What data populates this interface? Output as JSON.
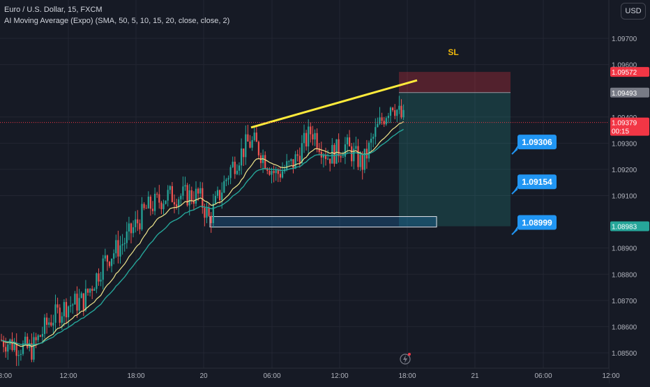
{
  "header": {
    "symbol_line": "Euro / U.S. Dollar, 15, FXCM",
    "indicator_line": "AI Moving Average (Expo) (SMA, 50, 5, 10, 15, 20, close, close, 2)",
    "currency_button": "USD"
  },
  "chart_data": {
    "type": "candlestick",
    "x_ticks": [
      "12:00",
      "18:00",
      "20",
      "06:00",
      "12:00",
      "18:00",
      "21",
      "06:00",
      "12:00"
    ],
    "x_tick_first_partial": "18:00",
    "y_ticks": [
      "1.09700",
      "1.09600",
      "1.09400",
      "1.09300",
      "1.09200",
      "1.09100",
      "1.08900",
      "1.08800",
      "1.08700",
      "1.08600",
      "1.08500"
    ],
    "ylim": [
      1.0848,
      1.098
    ],
    "price_badges": [
      {
        "label": "1.09572",
        "value": 1.09572,
        "color": "#f23645"
      },
      {
        "label": "1.09493",
        "value": 1.09493,
        "color": "#787b86"
      },
      {
        "label": "1.09379",
        "value": 1.09379,
        "color": "#f23645",
        "countdown": "00:15"
      },
      {
        "label": "1.08983",
        "value": 1.08983,
        "color": "#26a69a"
      }
    ],
    "annotations": {
      "sl_label": "SL",
      "target_callouts": [
        {
          "label": "1.09306",
          "value": 1.09306
        },
        {
          "label": "1.09154",
          "value": 1.09154
        },
        {
          "label": "1.08999",
          "value": 1.08999
        }
      ],
      "position": {
        "entry": 1.09493,
        "stop": 1.09572,
        "target": 1.08983
      },
      "demand_zone": {
        "top": 1.0902,
        "bottom": 1.0898
      },
      "trendline": {
        "from": 1.0936,
        "to": 1.0954
      }
    },
    "last_price": 1.09379,
    "colors": {
      "up": "#26a69a",
      "down": "#ef5350",
      "ma_fast": "#f0e68c",
      "ma_slow": "#26a69a",
      "trendline": "#ffeb3b",
      "callout": "#2196f3",
      "background": "#161a25"
    }
  }
}
